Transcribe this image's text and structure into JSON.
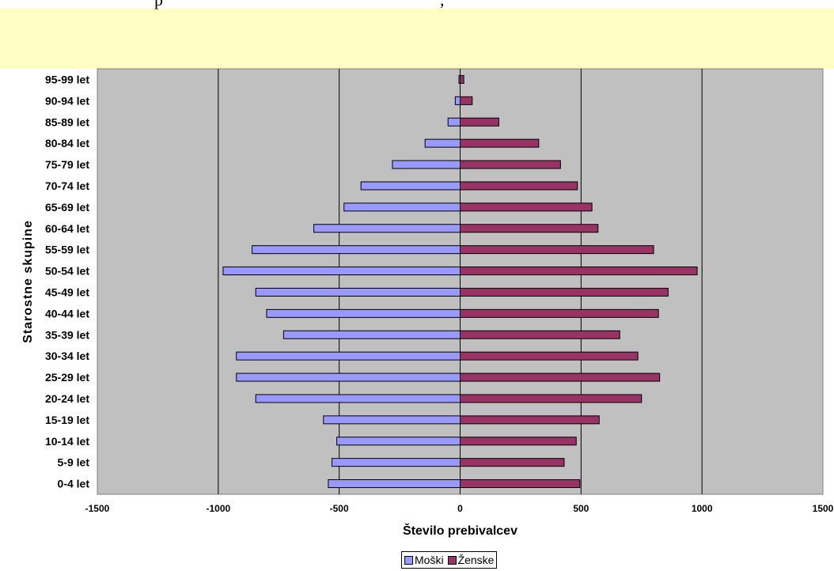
{
  "header": {
    "left_fragment": "p",
    "right_fragment": ","
  },
  "chart_data": {
    "type": "bar",
    "orientation": "horizontal",
    "stacked_diverging": true,
    "title": "",
    "xlabel": "Število prebivalcev",
    "ylabel": "Starostne skupine",
    "xlim": [
      -1500,
      1500
    ],
    "xticks": [
      -1500,
      -1000,
      -500,
      0,
      500,
      1000,
      1500
    ],
    "grid": "vertical",
    "legend_position": "bottom",
    "plot_background": "#c0c0c0",
    "categories": [
      "0-4 let",
      "5-9 let",
      "10-14 let",
      "15-19 let",
      "20-24 let",
      "25-29 let",
      "30-34 let",
      "35-39 let",
      "40-44 let",
      "45-49 let",
      "50-54 let",
      "55-59 let",
      "60-64 let",
      "65-69 let",
      "70-74 let",
      "75-79 let",
      "80-84 let",
      "85-89 let",
      "90-94 let",
      "95-99 let"
    ],
    "series": [
      {
        "name": "Moški",
        "color": "#9999ff",
        "values": [
          -545,
          -530,
          -510,
          -565,
          -845,
          -925,
          -925,
          -730,
          -800,
          -845,
          -980,
          -860,
          -605,
          -480,
          -410,
          -280,
          -145,
          -50,
          -20,
          -5
        ]
      },
      {
        "name": "Ženske",
        "color": "#993366",
        "values": [
          495,
          430,
          480,
          575,
          750,
          825,
          735,
          660,
          820,
          860,
          980,
          800,
          570,
          545,
          485,
          415,
          325,
          160,
          50,
          15
        ]
      }
    ]
  }
}
